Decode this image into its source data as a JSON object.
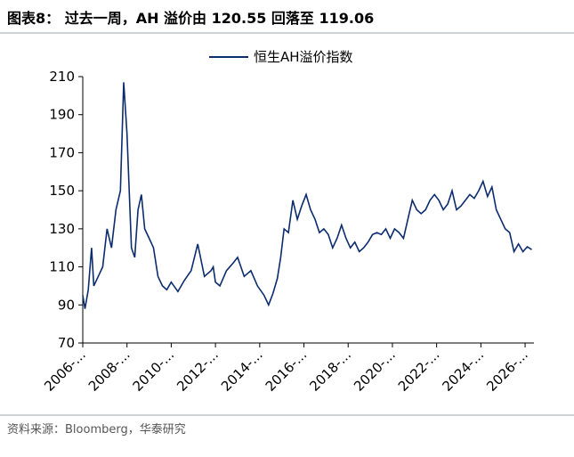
{
  "chart_data": {
    "type": "line",
    "title": "图表8：  过去一周，AH 溢价由 120.55 回落至 119.06",
    "source": "资料来源：Bloomberg，华泰研究",
    "x": [
      2006.0,
      2006.1,
      2006.25,
      2006.4,
      2006.5,
      2006.7,
      2006.9,
      2007.1,
      2007.3,
      2007.5,
      2007.7,
      2007.85,
      2008.0,
      2008.1,
      2008.2,
      2008.35,
      2008.5,
      2008.65,
      2008.8,
      2009.0,
      2009.2,
      2009.4,
      2009.6,
      2009.8,
      2010.0,
      2010.3,
      2010.6,
      2010.9,
      2011.2,
      2011.5,
      2011.8,
      2011.9,
      2012.0,
      2012.2,
      2012.5,
      2012.8,
      2013.0,
      2013.3,
      2013.6,
      2013.9,
      2014.2,
      2014.4,
      2014.6,
      2014.8,
      2014.95,
      2015.1,
      2015.3,
      2015.5,
      2015.7,
      2015.9,
      2016.1,
      2016.3,
      2016.5,
      2016.7,
      2016.9,
      2017.1,
      2017.3,
      2017.5,
      2017.7,
      2017.9,
      2018.1,
      2018.3,
      2018.5,
      2018.7,
      2018.9,
      2019.1,
      2019.3,
      2019.5,
      2019.7,
      2019.9,
      2020.1,
      2020.3,
      2020.5,
      2020.7,
      2020.9,
      2021.1,
      2021.3,
      2021.5,
      2021.7,
      2021.9,
      2022.1,
      2022.3,
      2022.5,
      2022.7,
      2022.9,
      2023.1,
      2023.3,
      2023.5,
      2023.7,
      2023.9,
      2024.1,
      2024.3,
      2024.5,
      2024.7,
      2024.9,
      2025.1,
      2025.3,
      2025.5,
      2025.7,
      2025.9,
      2026.1,
      2026.3
    ],
    "series": [
      {
        "name": "恒生AH溢价指数",
        "color": "#0b2c6e",
        "values": [
          95,
          88,
          98,
          120,
          100,
          105,
          110,
          130,
          120,
          140,
          150,
          207,
          180,
          150,
          120,
          115,
          140,
          148,
          130,
          125,
          120,
          105,
          100,
          98,
          102,
          97,
          103,
          108,
          122,
          105,
          108,
          110,
          102,
          100,
          108,
          112,
          115,
          105,
          108,
          100,
          95,
          90,
          96,
          104,
          115,
          130,
          128,
          145,
          135,
          142,
          148,
          140,
          135,
          128,
          130,
          127,
          120,
          125,
          132,
          125,
          120,
          123,
          118,
          120,
          123,
          127,
          128,
          127,
          130,
          125,
          130,
          128,
          125,
          135,
          145,
          140,
          138,
          140,
          145,
          148,
          145,
          140,
          143,
          150,
          140,
          142,
          145,
          148,
          146,
          150,
          155,
          147,
          152,
          140,
          135,
          130,
          128,
          118,
          122,
          118,
          120.55,
          119.06
        ]
      }
    ],
    "xlim": [
      2006,
      2026.4
    ],
    "xticks": [
      {
        "value": 2006,
        "label": "2006-..."
      },
      {
        "value": 2008,
        "label": "2008-..."
      },
      {
        "value": 2010,
        "label": "2010-..."
      },
      {
        "value": 2012,
        "label": "2012-..."
      },
      {
        "value": 2014,
        "label": "2014-..."
      },
      {
        "value": 2016,
        "label": "2016-..."
      },
      {
        "value": 2018,
        "label": "2018-..."
      },
      {
        "value": 2020,
        "label": "2020-..."
      },
      {
        "value": 2022,
        "label": "2022-..."
      },
      {
        "value": 2024,
        "label": "2024-..."
      },
      {
        "value": 2026,
        "label": "2026-..."
      }
    ],
    "ylim": [
      70,
      210
    ],
    "yticks": [
      70,
      90,
      110,
      130,
      150,
      170,
      190,
      210
    ]
  }
}
